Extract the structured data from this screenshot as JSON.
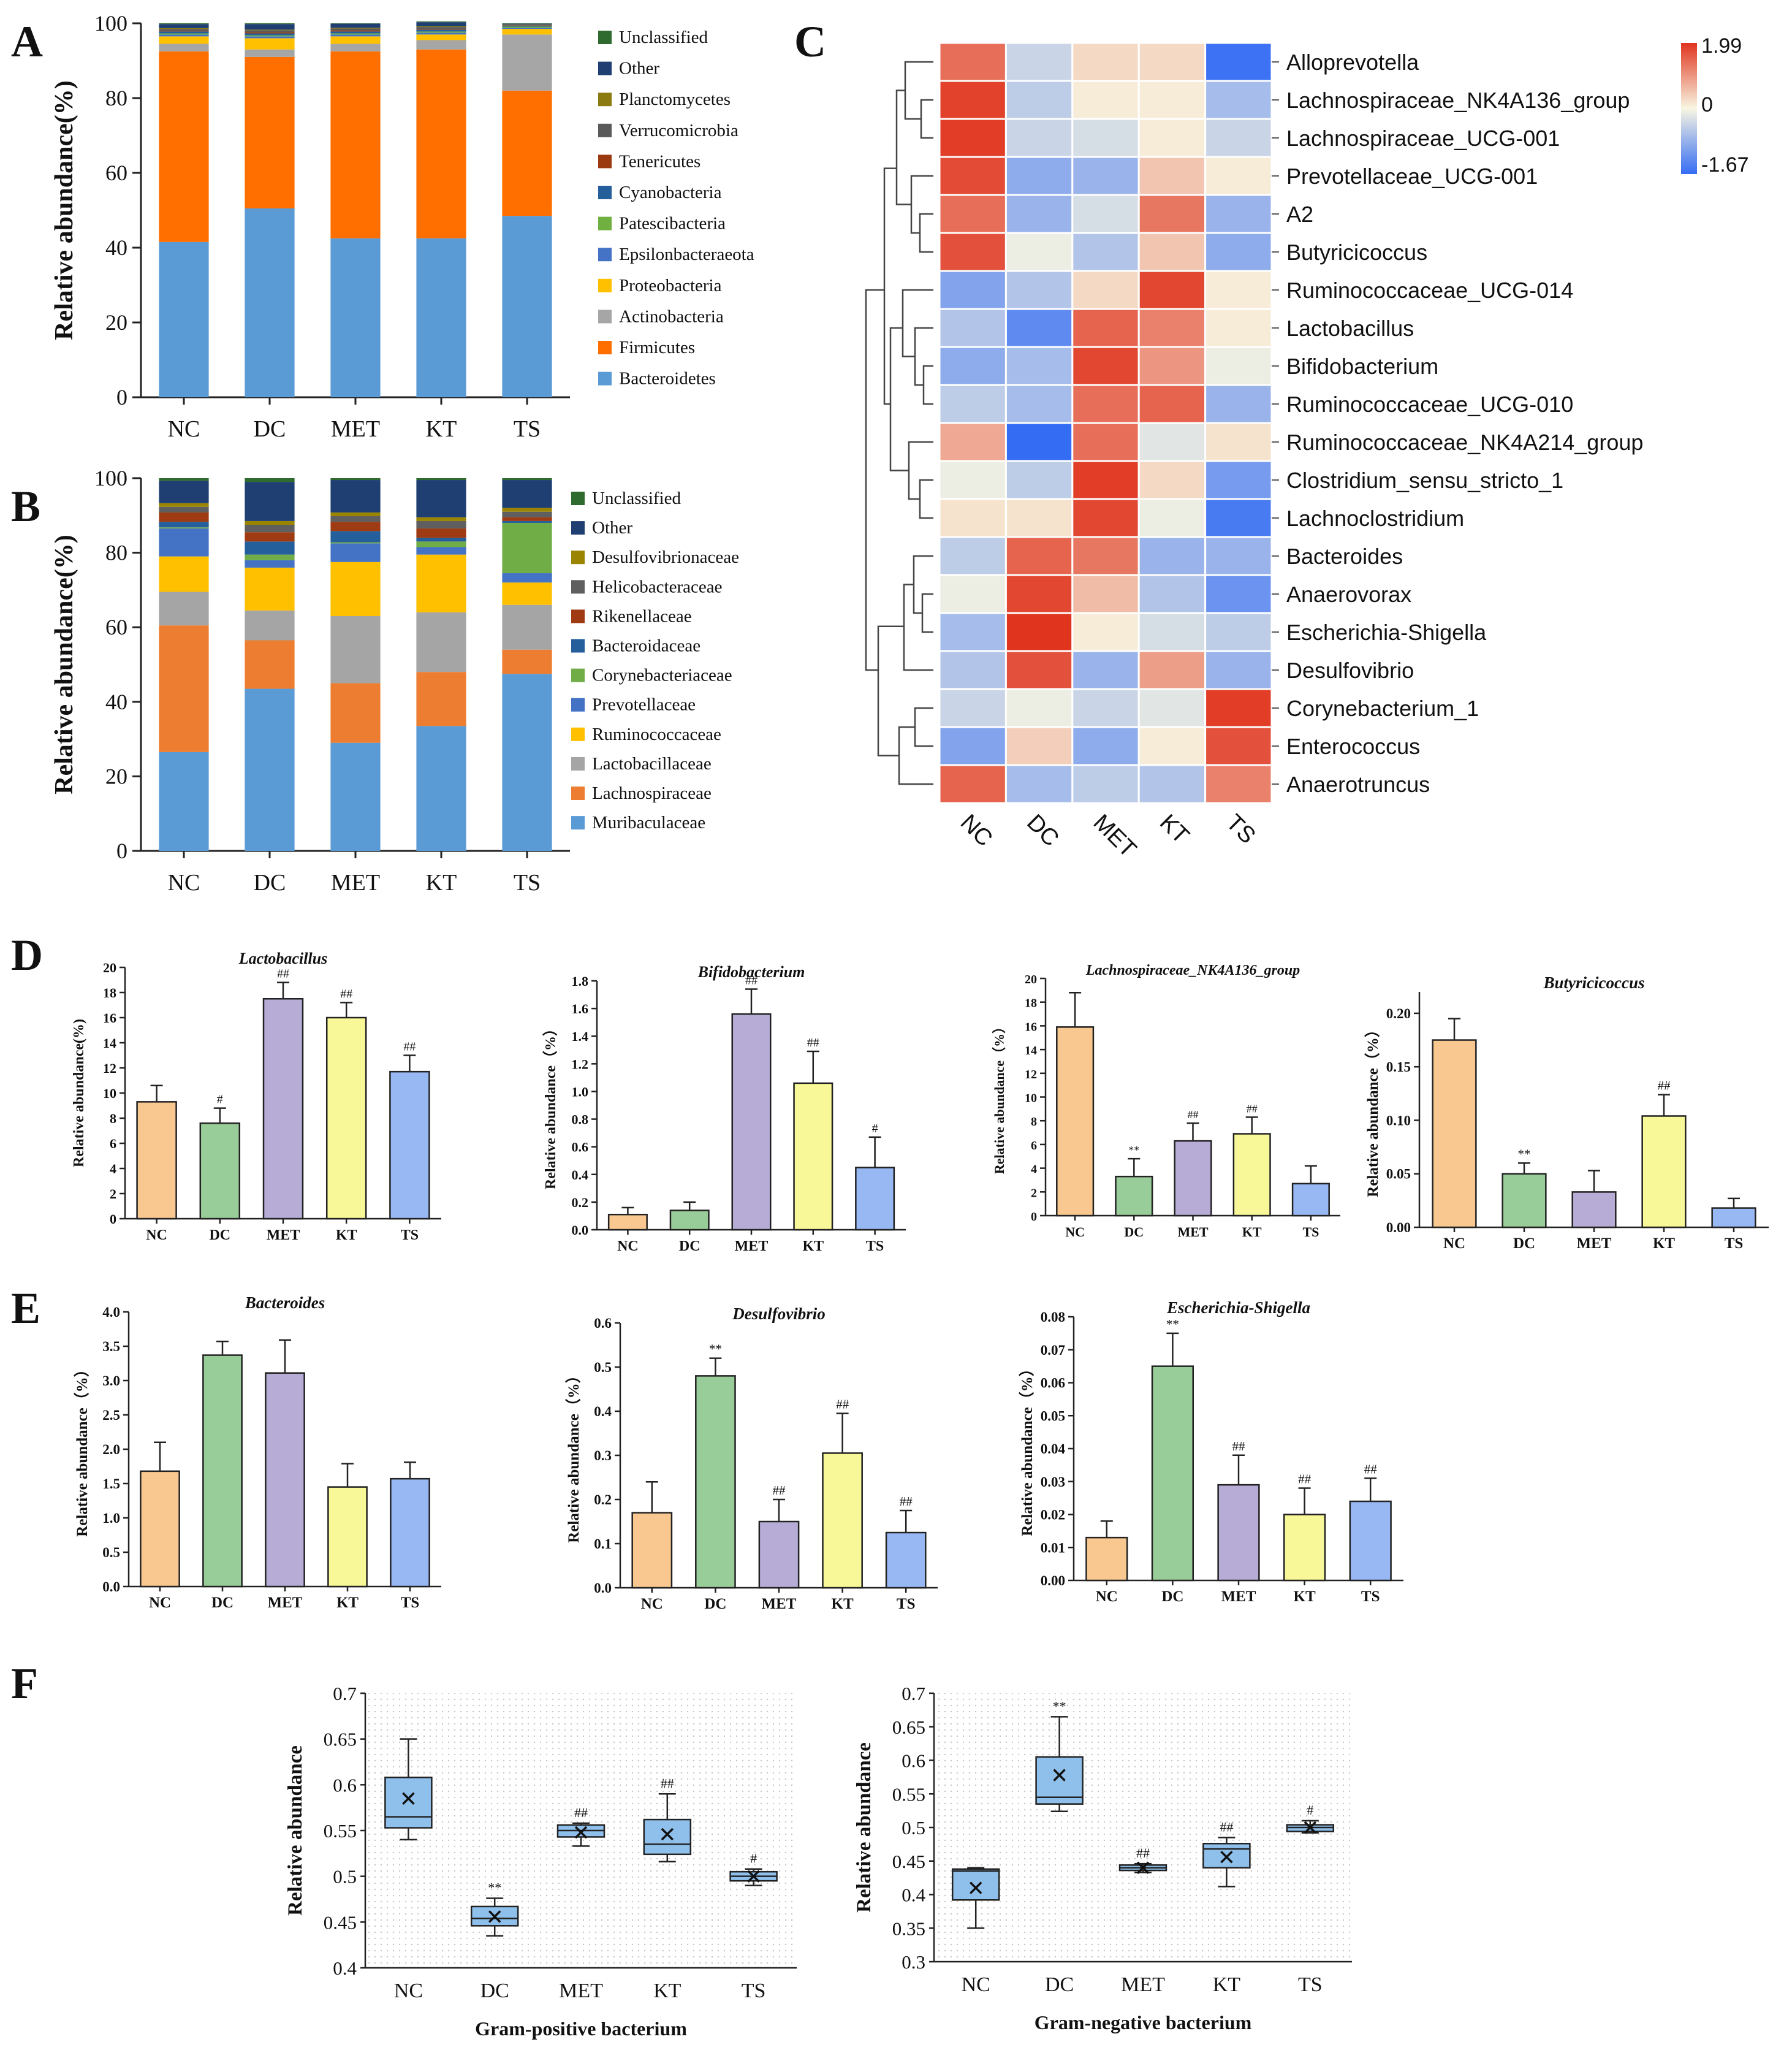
{
  "panel_letters": [
    "A",
    "B",
    "C",
    "D",
    "E",
    "F"
  ],
  "colors": {
    "Unclassified": "#2f6b2f",
    "Other": "#1f3f73",
    "Planctomycetes": "#8a7a10",
    "Verrucomicrobia": "#5a5a5a",
    "Tenericutes": "#9b3a10",
    "Cyanobacteria": "#245f9c",
    "Patescibacteria": "#6fb040",
    "Epsilonbacteraeota": "#4472c4",
    "Proteobacteria": "#ffc000",
    "Actinobacteria": "#a6a6a6",
    "Firmicutes": "#ff6f00",
    "Bacteroidetes": "#5b9bd5",
    "Desulfovibrionaceae": "#9a8400",
    "Helicobacteraceae": "#5f5f5f",
    "Rikenellaceae": "#9e3b12",
    "Bacteroidaceae": "#245f9c",
    "Corynebacteriaceae": "#70ad47",
    "Prevotellaceae": "#4472c4",
    "Ruminococcaceae": "#ffc000",
    "Lactobacillaceae": "#a5a5a5",
    "Lachnospiraceae": "#ed7d31",
    "Muribaculaceae": "#5b9bd5",
    "bar_NC": "#f8c890",
    "bar_DC": "#98cc98",
    "bar_MET": "#b6acd6",
    "bar_KT": "#f8f898",
    "bar_TS": "#98b8f4",
    "box_fill": "#8fc0ec"
  },
  "chart_data": [
    {
      "id": "A",
      "type": "bar",
      "stacked": true,
      "categories": [
        "NC",
        "DC",
        "MET",
        "KT",
        "TS"
      ],
      "ylabel": "Relative abundance(%)",
      "ylim": [
        0,
        100
      ],
      "yticks": [
        "0",
        "20",
        "40",
        "60",
        "80",
        "100"
      ],
      "legend": [
        "Unclassified",
        "Other",
        "Planctomycetes",
        "Verrucomicrobia",
        "Tenericutes",
        "Cyanobacteria",
        "Patescibacteria",
        "Epsilonbacteraeota",
        "Proteobacteria",
        "Actinobacteria",
        "Firmicutes",
        "Bacteroidetes"
      ],
      "series": [
        {
          "name": "Bacteroidetes",
          "values": [
            41.5,
            50.5,
            42.5,
            42.5,
            48.5
          ]
        },
        {
          "name": "Firmicutes",
          "values": [
            51,
            40.5,
            50,
            50.5,
            33.5
          ]
        },
        {
          "name": "Actinobacteria",
          "values": [
            2,
            2,
            2,
            2.5,
            15
          ]
        },
        {
          "name": "Proteobacteria",
          "values": [
            2,
            3,
            2,
            1.5,
            1.5
          ]
        },
        {
          "name": "Epsilonbacteraeota",
          "values": [
            0.5,
            0.5,
            0.5,
            0.5,
            0.3
          ]
        },
        {
          "name": "Patescibacteria",
          "values": [
            0.3,
            0.3,
            0.3,
            0.3,
            0.3
          ]
        },
        {
          "name": "Cyanobacteria",
          "values": [
            0.5,
            0.5,
            0.5,
            0.5,
            0.2
          ]
        },
        {
          "name": "Tenericutes",
          "values": [
            0.2,
            0.3,
            0.3,
            0.2,
            0.1
          ]
        },
        {
          "name": "Verrucomicrobia",
          "values": [
            0.5,
            0.5,
            0.5,
            0.5,
            0.2
          ]
        },
        {
          "name": "Planctomycetes",
          "values": [
            0.2,
            0.2,
            0.2,
            0.2,
            0.1
          ]
        },
        {
          "name": "Other",
          "values": [
            1.1,
            1.5,
            1.1,
            1.1,
            0.2
          ]
        },
        {
          "name": "Unclassified",
          "values": [
            0.2,
            0.2,
            0.1,
            0.2,
            0.1
          ]
        }
      ]
    },
    {
      "id": "B",
      "type": "bar",
      "stacked": true,
      "categories": [
        "NC",
        "DC",
        "MET",
        "KT",
        "TS"
      ],
      "ylabel": "Relative abundance(%)",
      "ylim": [
        0,
        100
      ],
      "yticks": [
        "0",
        "20",
        "40",
        "60",
        "80",
        "100"
      ],
      "legend": [
        "Unclassified",
        "Other",
        "Desulfovibrionaceae",
        "Helicobacteraceae",
        "Rikenellaceae",
        "Bacteroidaceae",
        "Corynebacteriaceae",
        "Prevotellaceae",
        "Ruminococcaceae",
        "Lactobacillaceae",
        "Lachnospiraceae",
        "Muribaculaceae"
      ],
      "series": [
        {
          "name": "Muribaculaceae",
          "values": [
            26.5,
            43.5,
            29,
            33.5,
            47.5
          ]
        },
        {
          "name": "Lachnospiraceae",
          "values": [
            34,
            13,
            16,
            14.5,
            6.5
          ]
        },
        {
          "name": "Lactobacillaceae",
          "values": [
            9,
            8,
            18,
            16,
            12
          ]
        },
        {
          "name": "Ruminococcaceae",
          "values": [
            9.5,
            11.5,
            14.5,
            15.5,
            6
          ]
        },
        {
          "name": "Prevotellaceae",
          "values": [
            7.5,
            2,
            5,
            2,
            2.5
          ]
        },
        {
          "name": "Corynebacteriaceae",
          "values": [
            0.3,
            1.5,
            0.3,
            1.5,
            13.5
          ]
        },
        {
          "name": "Bacteroidaceae",
          "values": [
            1.5,
            3.5,
            3,
            1,
            0.5
          ]
        },
        {
          "name": "Rikenellaceae",
          "values": [
            2.5,
            2.5,
            2.5,
            2.5,
            1
          ]
        },
        {
          "name": "Helicobacteraceae",
          "values": [
            1.5,
            2,
            1.5,
            2,
            1.5
          ]
        },
        {
          "name": "Desulfovibrionaceae",
          "values": [
            1,
            1,
            1,
            1,
            1
          ]
        },
        {
          "name": "Other",
          "values": [
            6,
            10.5,
            8.7,
            10,
            7.5
          ]
        },
        {
          "name": "Unclassified",
          "values": [
            0.7,
            1,
            0.5,
            0.5,
            0.5
          ]
        }
      ]
    },
    {
      "id": "C",
      "type": "heatmap",
      "columns": [
        "NC",
        "DC",
        "MET",
        "KT",
        "TS"
      ],
      "rows": [
        "Alloprevotella",
        "Lachnospiraceae_NK4A136_group",
        "Lachnospiraceae_UCG-001",
        "Prevotellaceae_UCG-001",
        "A2",
        "Butyricicoccus",
        "Ruminococcaceae_UCG-014",
        "Lactobacillus",
        "Bifidobacterium",
        "Ruminococcaceae_UCG-010",
        "Ruminococcaceae_NK4A214_group",
        "Clostridium_sensu_stricto_1",
        "Lachnoclostridium",
        "Bacteroides",
        "Anaerovorax",
        "Escherichia-Shigella",
        "Desulfovibrio",
        "Corynebacterium_1",
        "Enterococcus",
        "Anaerotruncus"
      ],
      "values": [
        [
          1.4,
          -0.4,
          0.3,
          0.3,
          -1.6
        ],
        [
          1.85,
          -0.5,
          0.1,
          0.1,
          -0.7
        ],
        [
          1.9,
          -0.4,
          -0.3,
          0.1,
          -0.4
        ],
        [
          1.75,
          -0.9,
          -0.8,
          0.5,
          0.1
        ],
        [
          1.4,
          -0.8,
          -0.3,
          1.3,
          -0.8
        ],
        [
          1.7,
          -0.1,
          -0.6,
          0.5,
          -0.9
        ],
        [
          -1.0,
          -0.6,
          0.3,
          1.8,
          0.1
        ],
        [
          -0.6,
          -1.3,
          1.5,
          1.2,
          0.1
        ],
        [
          -0.9,
          -0.7,
          1.8,
          1.0,
          -0.1
        ],
        [
          -0.5,
          -0.7,
          1.4,
          1.5,
          -0.8
        ],
        [
          0.8,
          -1.67,
          1.4,
          -0.2,
          0.2
        ],
        [
          -0.1,
          -0.5,
          1.9,
          0.3,
          -1.1
        ],
        [
          0.2,
          0.2,
          1.8,
          -0.1,
          -1.5
        ],
        [
          -0.5,
          1.5,
          1.3,
          -0.8,
          -0.8
        ],
        [
          -0.1,
          1.8,
          0.6,
          -0.6,
          -1.2
        ],
        [
          -0.7,
          1.99,
          0.1,
          -0.3,
          -0.5
        ],
        [
          -0.6,
          1.7,
          -0.8,
          0.9,
          -0.8
        ],
        [
          -0.4,
          -0.1,
          -0.4,
          -0.2,
          1.9
        ],
        [
          -1.0,
          0.4,
          -0.9,
          0.1,
          1.7
        ],
        [
          1.5,
          -0.7,
          -0.5,
          -0.6,
          1.2
        ]
      ],
      "scale": {
        "max": "1.99",
        "mid": "0",
        "min": "-1.67"
      }
    },
    {
      "id": "D1",
      "type": "bar",
      "title": "Lactobacillus",
      "ylabel": "Relative abundance(%)",
      "categories": [
        "NC",
        "DC",
        "MET",
        "KT",
        "TS"
      ],
      "values": [
        9.3,
        7.6,
        17.5,
        16.0,
        11.7
      ],
      "errors": [
        1.3,
        1.2,
        1.3,
        1.2,
        1.3
      ],
      "annotations": [
        "",
        "#",
        "##",
        "##",
        "##"
      ],
      "ylim": [
        0,
        20
      ],
      "yticks": [
        "0",
        "2",
        "4",
        "6",
        "8",
        "10",
        "12",
        "14",
        "16",
        "18",
        "20"
      ]
    },
    {
      "id": "D2",
      "type": "bar",
      "title": "Bifidobacterium",
      "ylabel": "Relative abundance（%）",
      "categories": [
        "NC",
        "DC",
        "MET",
        "KT",
        "TS"
      ],
      "values": [
        0.11,
        0.14,
        1.56,
        1.06,
        0.45
      ],
      "errors": [
        0.05,
        0.06,
        0.18,
        0.23,
        0.22
      ],
      "annotations": [
        "",
        "",
        "##",
        "##",
        "#"
      ],
      "ylim": [
        0,
        1.8
      ],
      "yticks": [
        "0.0",
        "0.2",
        "0.4",
        "0.6",
        "0.8",
        "1.0",
        "1.2",
        "1.4",
        "1.6",
        "1.8"
      ]
    },
    {
      "id": "D3",
      "type": "bar",
      "title": "Lachnospiraceae_NK4A136_group",
      "ylabel": "Relative abundance（%）",
      "categories": [
        "NC",
        "DC",
        "MET",
        "KT",
        "TS"
      ],
      "values": [
        15.9,
        3.3,
        6.3,
        6.9,
        2.7
      ],
      "errors": [
        2.9,
        1.5,
        1.5,
        1.4,
        1.5
      ],
      "annotations": [
        "",
        "**",
        "##",
        "##",
        ""
      ],
      "ylim": [
        0,
        20
      ],
      "yticks": [
        "0",
        "2",
        "4",
        "6",
        "8",
        "10",
        "12",
        "14",
        "16",
        "18",
        "20"
      ]
    },
    {
      "id": "D4",
      "type": "bar",
      "title": "Butyricicoccus",
      "ylabel": "Relative abundance（%）",
      "categories": [
        "NC",
        "DC",
        "MET",
        "KT",
        "TS"
      ],
      "values": [
        0.175,
        0.05,
        0.033,
        0.104,
        0.018
      ],
      "errors": [
        0.02,
        0.01,
        0.02,
        0.02,
        0.009
      ],
      "annotations": [
        "",
        "**",
        "",
        "##",
        ""
      ],
      "ylim": [
        0,
        0.22
      ],
      "yticks": [
        "0.00",
        "0.05",
        "0.10",
        "0.15",
        "0.20"
      ]
    },
    {
      "id": "E1",
      "type": "bar",
      "title": "Bacteroides",
      "ylabel": "Relative abundance（%）",
      "categories": [
        "NC",
        "DC",
        "MET",
        "KT",
        "TS"
      ],
      "values": [
        1.68,
        3.37,
        3.11,
        1.45,
        1.57
      ],
      "errors": [
        0.42,
        0.2,
        0.48,
        0.34,
        0.24
      ],
      "annotations": [
        "",
        "",
        "",
        "",
        ""
      ],
      "ylim": [
        0,
        4
      ],
      "yticks": [
        "0.0",
        "0.5",
        "1.0",
        "1.5",
        "2.0",
        "2.5",
        "3.0",
        "3.5",
        "4.0"
      ]
    },
    {
      "id": "E2",
      "type": "bar",
      "title": "Desulfovibrio",
      "ylabel": "Relative abundance（%）",
      "categories": [
        "NC",
        "DC",
        "MET",
        "KT",
        "TS"
      ],
      "values": [
        0.17,
        0.48,
        0.15,
        0.305,
        0.125
      ],
      "errors": [
        0.07,
        0.04,
        0.05,
        0.09,
        0.05
      ],
      "annotations": [
        "",
        "**",
        "##",
        "##",
        "##"
      ],
      "ylim": [
        0,
        0.6
      ],
      "yticks": [
        "0.0",
        "0.1",
        "0.2",
        "0.3",
        "0.4",
        "0.5",
        "0.6"
      ]
    },
    {
      "id": "E3",
      "type": "bar",
      "title": "Escherichia-Shigella",
      "ylabel": "Relative abundance（%）",
      "categories": [
        "NC",
        "DC",
        "MET",
        "KT",
        "TS"
      ],
      "values": [
        0.013,
        0.065,
        0.029,
        0.02,
        0.024
      ],
      "errors": [
        0.005,
        0.01,
        0.009,
        0.008,
        0.007
      ],
      "annotations": [
        "",
        "**",
        "##",
        "##",
        "##"
      ],
      "ylim": [
        0,
        0.08
      ],
      "yticks": [
        "0.00",
        "0.01",
        "0.02",
        "0.03",
        "0.04",
        "0.05",
        "0.06",
        "0.07",
        "0.08"
      ]
    },
    {
      "id": "F1",
      "type": "box",
      "xlabel": "Gram-positive bacterium",
      "ylabel": "Relative abundance",
      "categories": [
        "NC",
        "DC",
        "MET",
        "KT",
        "TS"
      ],
      "ylim": [
        0.4,
        0.7
      ],
      "yticks": [
        "0.4",
        "0.45",
        "0.5",
        "0.55",
        "0.6",
        "0.65",
        "0.7"
      ],
      "boxes": [
        {
          "min": 0.54,
          "q1": 0.553,
          "median": 0.565,
          "q3": 0.608,
          "max": 0.65,
          "mean": 0.585
        },
        {
          "min": 0.435,
          "q1": 0.446,
          "median": 0.454,
          "q3": 0.467,
          "max": 0.476,
          "mean": 0.456
        },
        {
          "min": 0.533,
          "q1": 0.543,
          "median": 0.55,
          "q3": 0.556,
          "max": 0.558,
          "mean": 0.548
        },
        {
          "min": 0.516,
          "q1": 0.524,
          "median": 0.535,
          "q3": 0.562,
          "max": 0.59,
          "mean": 0.546
        },
        {
          "min": 0.49,
          "q1": 0.495,
          "median": 0.5,
          "q3": 0.505,
          "max": 0.508,
          "mean": 0.5
        }
      ],
      "annotations": [
        "",
        "**",
        "##",
        "##",
        "#"
      ]
    },
    {
      "id": "F2",
      "type": "box",
      "xlabel": "Gram-negative bacterium",
      "ylabel": "Relative abundance",
      "categories": [
        "NC",
        "DC",
        "MET",
        "KT",
        "TS"
      ],
      "ylim": [
        0.3,
        0.7
      ],
      "yticks": [
        "0.3",
        "0.35",
        "0.4",
        "0.45",
        "0.5",
        "0.55",
        "0.6",
        "0.65",
        "0.7"
      ],
      "boxes": [
        {
          "min": 0.35,
          "q1": 0.392,
          "median": 0.435,
          "q3": 0.438,
          "max": 0.44,
          "mean": 0.41
        },
        {
          "min": 0.524,
          "q1": 0.535,
          "median": 0.545,
          "q3": 0.605,
          "max": 0.665,
          "mean": 0.578
        },
        {
          "min": 0.433,
          "q1": 0.436,
          "median": 0.44,
          "q3": 0.444,
          "max": 0.446,
          "mean": 0.44
        },
        {
          "min": 0.412,
          "q1": 0.44,
          "median": 0.468,
          "q3": 0.476,
          "max": 0.485,
          "mean": 0.456
        },
        {
          "min": 0.492,
          "q1": 0.494,
          "median": 0.5,
          "q3": 0.504,
          "max": 0.51,
          "mean": 0.5
        }
      ],
      "annotations": [
        "",
        "**",
        "##",
        "##",
        "#"
      ]
    }
  ]
}
